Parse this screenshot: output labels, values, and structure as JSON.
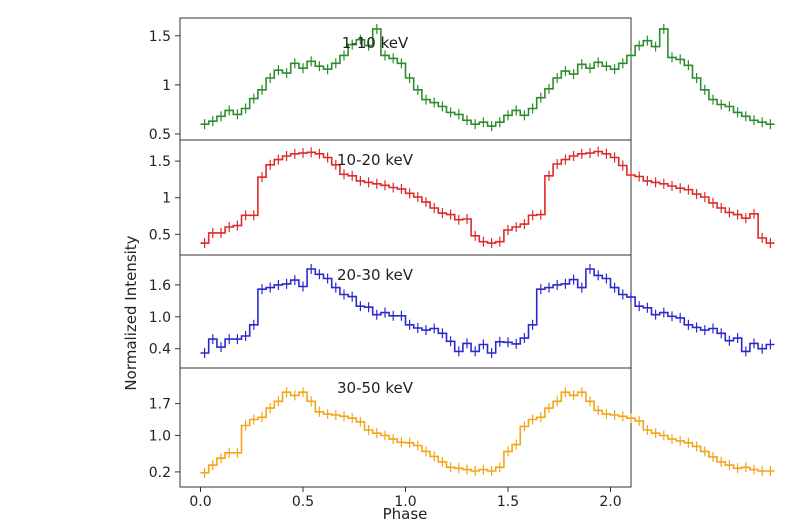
{
  "chart_data": {
    "type": "line",
    "layout": "stacked-panels",
    "xlabel": "Phase",
    "ylabel": "Normalized Intensity",
    "xlim": [
      -0.1,
      2.1
    ],
    "xticks": [
      "0.0",
      "0.5",
      "1.0",
      "1.5",
      "2.0"
    ],
    "xtick_values": [
      0.0,
      0.5,
      1.0,
      1.5,
      2.0
    ],
    "x_bin_width": 0.04,
    "panels": [
      {
        "label": "1-10 keV",
        "color": "#2e8b2e",
        "ylim": [
          0.5,
          1.62
        ],
        "yticks": [
          "0.5",
          "1",
          "1.5"
        ],
        "ytick_values": [
          0.5,
          1.0,
          1.5
        ],
        "values": [
          0.6,
          0.63,
          0.68,
          0.74,
          0.7,
          0.76,
          0.86,
          0.95,
          1.07,
          1.15,
          1.12,
          1.22,
          1.17,
          1.24,
          1.19,
          1.16,
          1.22,
          1.3,
          1.41,
          1.46,
          1.4,
          1.57,
          1.3,
          1.27,
          1.22,
          1.07,
          0.95,
          0.85,
          0.82,
          0.78,
          0.72,
          0.7,
          0.64,
          0.6,
          0.62,
          0.58,
          0.62,
          0.69,
          0.74,
          0.69,
          0.76,
          0.87,
          0.96,
          1.07,
          1.14,
          1.11,
          1.21,
          1.17,
          1.23,
          1.19,
          1.16,
          1.22,
          1.3,
          1.4,
          1.45,
          1.39,
          1.57,
          1.28,
          1.26,
          1.2,
          1.07,
          0.95,
          0.85,
          0.8,
          0.78,
          0.72,
          0.68,
          0.64,
          0.62,
          0.6
        ]
      },
      {
        "label": "10-20 keV",
        "color": "#dd2a2a",
        "ylim": [
          0.3,
          1.72
        ],
        "yticks": [
          "0.5",
          "1",
          "1.5"
        ],
        "ytick_values": [
          0.5,
          1.0,
          1.5
        ],
        "values": [
          0.38,
          0.52,
          0.52,
          0.6,
          0.62,
          0.76,
          0.76,
          1.28,
          1.45,
          1.52,
          1.57,
          1.6,
          1.61,
          1.62,
          1.6,
          1.55,
          1.45,
          1.32,
          1.3,
          1.23,
          1.21,
          1.19,
          1.17,
          1.14,
          1.12,
          1.06,
          1.01,
          0.94,
          0.86,
          0.79,
          0.77,
          0.7,
          0.71,
          0.48,
          0.4,
          0.38,
          0.4,
          0.56,
          0.6,
          0.64,
          0.76,
          0.77,
          1.3,
          1.46,
          1.52,
          1.57,
          1.6,
          1.61,
          1.63,
          1.6,
          1.55,
          1.44,
          1.31,
          1.29,
          1.23,
          1.21,
          1.19,
          1.16,
          1.13,
          1.11,
          1.05,
          1.01,
          0.93,
          0.86,
          0.8,
          0.77,
          0.72,
          0.78,
          0.45,
          0.38
        ]
      },
      {
        "label": "20-30 keV",
        "color": "#2a2acc",
        "ylim": [
          0.15,
          2.05
        ],
        "yticks": [
          "0.4",
          "1.0",
          "1.6"
        ],
        "ytick_values": [
          0.4,
          1.0,
          1.6
        ],
        "values": [
          0.32,
          0.58,
          0.43,
          0.58,
          0.58,
          0.64,
          0.85,
          1.52,
          1.55,
          1.6,
          1.62,
          1.69,
          1.57,
          1.9,
          1.8,
          1.72,
          1.55,
          1.42,
          1.38,
          1.2,
          1.18,
          1.04,
          1.08,
          1.02,
          1.02,
          0.85,
          0.79,
          0.75,
          0.78,
          0.69,
          0.54,
          0.35,
          0.5,
          0.35,
          0.48,
          0.32,
          0.53,
          0.52,
          0.49,
          0.6,
          0.85,
          1.52,
          1.55,
          1.6,
          1.62,
          1.7,
          1.55,
          1.9,
          1.78,
          1.72,
          1.55,
          1.42,
          1.37,
          1.2,
          1.17,
          1.04,
          1.08,
          1.01,
          0.98,
          0.85,
          0.8,
          0.75,
          0.78,
          0.69,
          0.55,
          0.6,
          0.35,
          0.5,
          0.4,
          0.48
        ]
      },
      {
        "label": "30-50 keV",
        "color": "#f2a516",
        "ylim": [
          0.0,
          2.35
        ],
        "yticks": [
          "0.2",
          "1.0",
          "1.7"
        ],
        "ytick_values": [
          0.2,
          1.0,
          1.7
        ],
        "values": [
          0.18,
          0.35,
          0.5,
          0.62,
          0.62,
          1.22,
          1.35,
          1.4,
          1.6,
          1.75,
          1.95,
          1.88,
          1.95,
          1.75,
          1.52,
          1.47,
          1.45,
          1.42,
          1.38,
          1.3,
          1.12,
          1.05,
          1.0,
          0.92,
          0.85,
          0.84,
          0.78,
          0.65,
          0.54,
          0.42,
          0.3,
          0.28,
          0.25,
          0.22,
          0.25,
          0.22,
          0.3,
          0.65,
          0.8,
          1.2,
          1.35,
          1.4,
          1.6,
          1.75,
          1.95,
          1.88,
          1.95,
          1.75,
          1.55,
          1.47,
          1.45,
          1.42,
          1.38,
          1.32,
          1.12,
          1.05,
          1.0,
          0.92,
          0.88,
          0.84,
          0.76,
          0.65,
          0.53,
          0.42,
          0.35,
          0.28,
          0.3,
          0.25,
          0.22,
          0.22
        ]
      }
    ]
  }
}
